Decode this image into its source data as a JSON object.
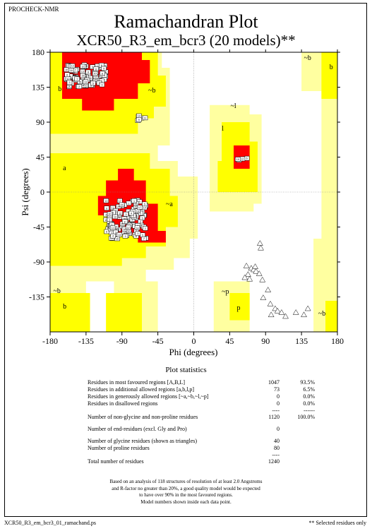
{
  "header": {
    "program": "PROCHECK-NMR",
    "title": "Ramachandran Plot",
    "subtitle": "XCR50_R3_em_bcr3 (20 models)**"
  },
  "chart_data": {
    "type": "scatter",
    "xlabel": "Phi (degrees)",
    "ylabel": "Psi (degrees)",
    "xlim": [
      -180,
      180
    ],
    "ylim": [
      -180,
      180
    ],
    "xticks": [
      "-180",
      "-135",
      "-90",
      "-45",
      "0",
      "45",
      "90",
      "135",
      "180"
    ],
    "yticks": [
      "180",
      "135",
      "90",
      "45",
      "0",
      "-45",
      "-90",
      "-135"
    ],
    "region_colors": {
      "most_favoured": "#ff0000",
      "additional_allowed": "#ffff00",
      "generously_allowed": "#ffffa0",
      "disallowed": "#ffffff"
    },
    "region_labels": [
      {
        "text": "b",
        "phi": -170,
        "psi": 130
      },
      {
        "text": "~b",
        "phi": -57,
        "psi": 128
      },
      {
        "text": "~l",
        "phi": 46,
        "psi": 108
      },
      {
        "text": "l",
        "phi": 35,
        "psi": 79
      },
      {
        "text": "a",
        "phi": -164,
        "psi": 28
      },
      {
        "text": "~a",
        "phi": -35,
        "psi": -18
      },
      {
        "text": "~b",
        "phi": 138,
        "psi": 170
      },
      {
        "text": "b",
        "phi": 170,
        "psi": 158
      },
      {
        "text": "~b",
        "phi": -176,
        "psi": -130
      },
      {
        "text": "b",
        "phi": -164,
        "psi": -150
      },
      {
        "text": "~p",
        "phi": 35,
        "psi": -131
      },
      {
        "text": "p",
        "phi": 54,
        "psi": -152
      },
      {
        "text": "~b",
        "phi": 156,
        "psi": -159
      }
    ],
    "glycine_triangles": [
      [
        83,
        -66
      ],
      [
        84,
        -72
      ],
      [
        66,
        -95
      ],
      [
        72,
        -98
      ],
      [
        75,
        -100
      ],
      [
        78,
        -102
      ],
      [
        68,
        -106
      ],
      [
        82,
        -105
      ],
      [
        64,
        -110
      ],
      [
        70,
        -112
      ],
      [
        86,
        -113
      ],
      [
        77,
        -96
      ],
      [
        93,
        -126
      ],
      [
        87,
        -136
      ],
      [
        96,
        -144
      ],
      [
        102,
        -150
      ],
      [
        105,
        -153
      ],
      [
        110,
        -155
      ],
      [
        115,
        -160
      ],
      [
        97,
        -158
      ],
      [
        128,
        -155
      ],
      [
        138,
        -158
      ],
      [
        143,
        -150
      ]
    ],
    "beta_cluster": {
      "phi": [
        -160,
        -110
      ],
      "psi": [
        135,
        165
      ]
    },
    "alpha_cluster": {
      "phi": [
        -110,
        -60
      ],
      "psi": [
        -60,
        -10
      ]
    }
  },
  "stats": {
    "title": "Plot statistics",
    "rows": [
      {
        "label": "Residues in most favoured regions  [A,B,L]",
        "count": "1047",
        "pct": "93.5%"
      },
      {
        "label": "Residues in additional allowed regions  [a,b,l,p]",
        "count": "73",
        "pct": "6.5%"
      },
      {
        "label": "Residues in generously allowed regions  [~a,~b,~l,~p]",
        "count": "0",
        "pct": "0.0%"
      },
      {
        "label": "Residues in disallowed regions",
        "count": "0",
        "pct": "0.0%"
      }
    ],
    "sep1_count": "----",
    "sep1_pct": "------",
    "nongly": {
      "label": "Number of non-glycine and non-proline residues",
      "count": "1120",
      "pct": "100.0%"
    },
    "endres": {
      "label": "Number of end-residues (excl. Gly and Pro)",
      "count": "0"
    },
    "glycine": {
      "label": "Number of glycine residues (shown as triangles)",
      "count": "40"
    },
    "proline": {
      "label": "Number of proline residues",
      "count": "80"
    },
    "sep2": "----",
    "total": {
      "label": "Total number of residues",
      "count": "1240"
    }
  },
  "footnote": {
    "line1": "Based on an analysis of 118 structures of resolution of at least 2.0 Angstroms",
    "line2": "and R-factor no greater than 20%, a good quality model would be expected",
    "line3": "to have over 90% in the most favoured regions.",
    "line4": "Model numbers shown inside each data point."
  },
  "footer": {
    "filename": "XCR50_R3_em_bcr3_01_ramachand.ps",
    "note": "** Selected residues only"
  }
}
